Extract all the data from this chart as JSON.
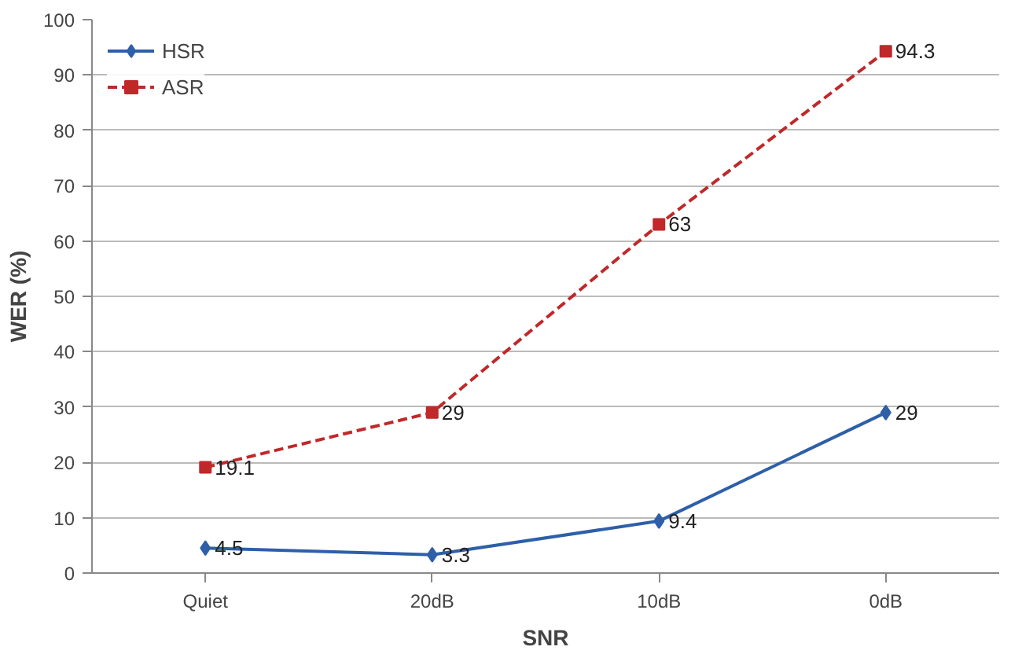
{
  "chart_data": {
    "type": "line",
    "xlabel": "SNR",
    "ylabel": "WER (%)",
    "categories": [
      "Quiet",
      "20dB",
      "10dB",
      "0dB"
    ],
    "series": [
      {
        "name": "HSR",
        "color": "#2e5fa8",
        "values": [
          4.5,
          3.3,
          9.4,
          29
        ],
        "marker": "diamond",
        "line_style": "solid"
      },
      {
        "name": "ASR",
        "color": "#c0282a",
        "values": [
          19.1,
          29,
          63,
          94.3
        ],
        "marker": "square",
        "line_style": "dashed"
      }
    ],
    "ylim": [
      0,
      100
    ],
    "yticks": [
      0,
      10,
      20,
      30,
      40,
      50,
      60,
      70,
      80,
      90,
      100
    ],
    "grid": "y",
    "legend": "top left",
    "data_labels": true
  }
}
